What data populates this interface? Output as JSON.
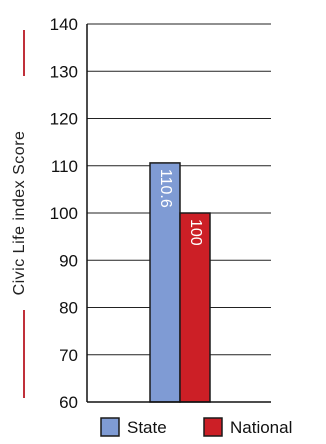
{
  "chart_data": {
    "type": "bar",
    "title": "",
    "ylabel": "Civic Life index Score",
    "ylim": [
      60,
      140
    ],
    "yticks": [
      60,
      70,
      80,
      90,
      100,
      110,
      120,
      130,
      140
    ],
    "grid": true,
    "legend_position": "bottom",
    "series": [
      {
        "name": "State",
        "value": 110.6,
        "label": "110.6",
        "color": "#7f9bd4"
      },
      {
        "name": "National",
        "value": 100,
        "label": "100",
        "color": "#cc1f26"
      }
    ],
    "decor_color": "#c0303a"
  }
}
